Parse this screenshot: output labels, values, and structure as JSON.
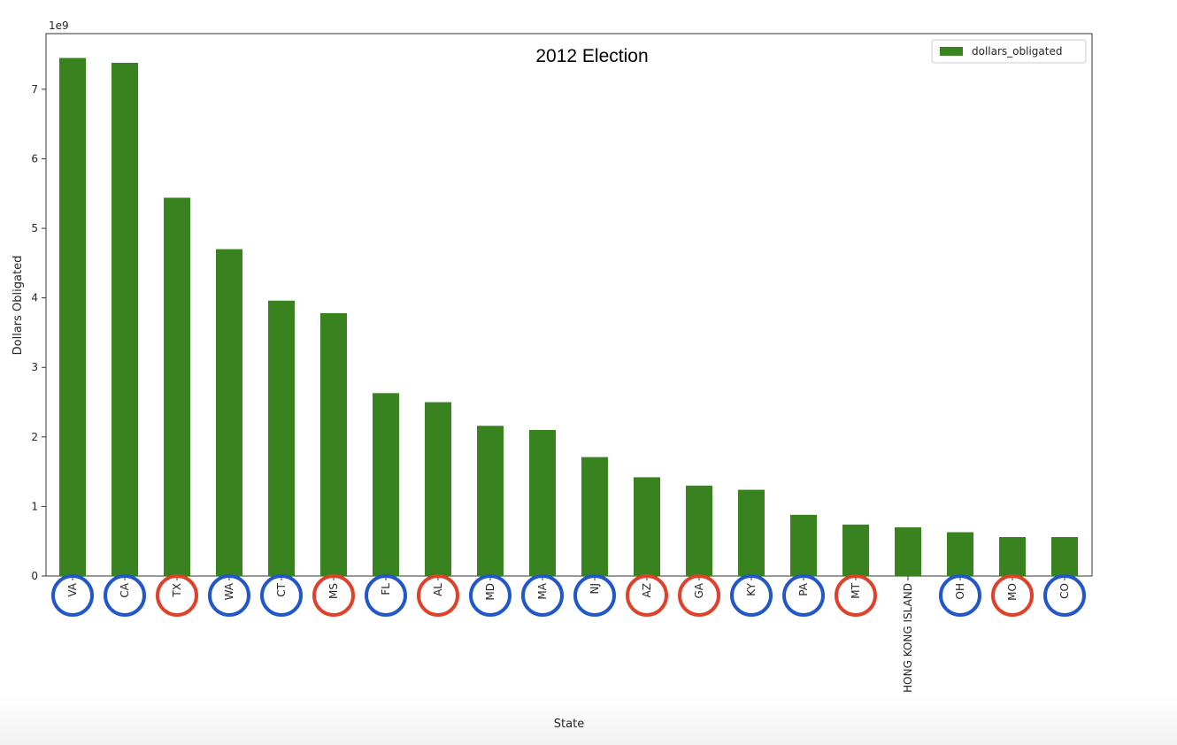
{
  "chart_data": {
    "type": "bar",
    "title": "2012 Election",
    "xlabel": "State",
    "ylabel": "Dollars Obligated",
    "y_scale_label": "1e9",
    "ylim": [
      0,
      7.8
    ],
    "yticks": [
      0,
      1,
      2,
      3,
      4,
      5,
      6,
      7
    ],
    "grid": false,
    "legend_position": "top-right",
    "categories": [
      "VA",
      "CA",
      "TX",
      "WA",
      "CT",
      "MS",
      "FL",
      "AL",
      "MD",
      "MA",
      "NJ",
      "AZ",
      "GA",
      "KY",
      "PA",
      "MT",
      "HONG KONG ISLAND",
      "OH",
      "MO",
      "CO"
    ],
    "series": [
      {
        "name": "dollars_obligated",
        "color": "#38821f",
        "values": [
          7.45,
          7.38,
          5.44,
          4.7,
          3.96,
          3.78,
          2.63,
          2.5,
          2.16,
          2.1,
          1.71,
          1.42,
          1.3,
          1.24,
          0.88,
          0.74,
          0.7,
          0.63,
          0.56,
          0.56
        ]
      }
    ],
    "annotations": {
      "type": "circled-tick-labels",
      "circle_colors": [
        "blue",
        "blue",
        "red",
        "blue",
        "blue",
        "red",
        "blue",
        "red",
        "blue",
        "blue",
        "blue",
        "red",
        "red",
        "blue",
        "blue",
        "red",
        "",
        "blue",
        "red",
        "blue"
      ]
    }
  },
  "colors": {
    "bar": "#38821f",
    "circle_blue": "#2257c9",
    "circle_red": "#e0412a",
    "axis": "#333333"
  }
}
